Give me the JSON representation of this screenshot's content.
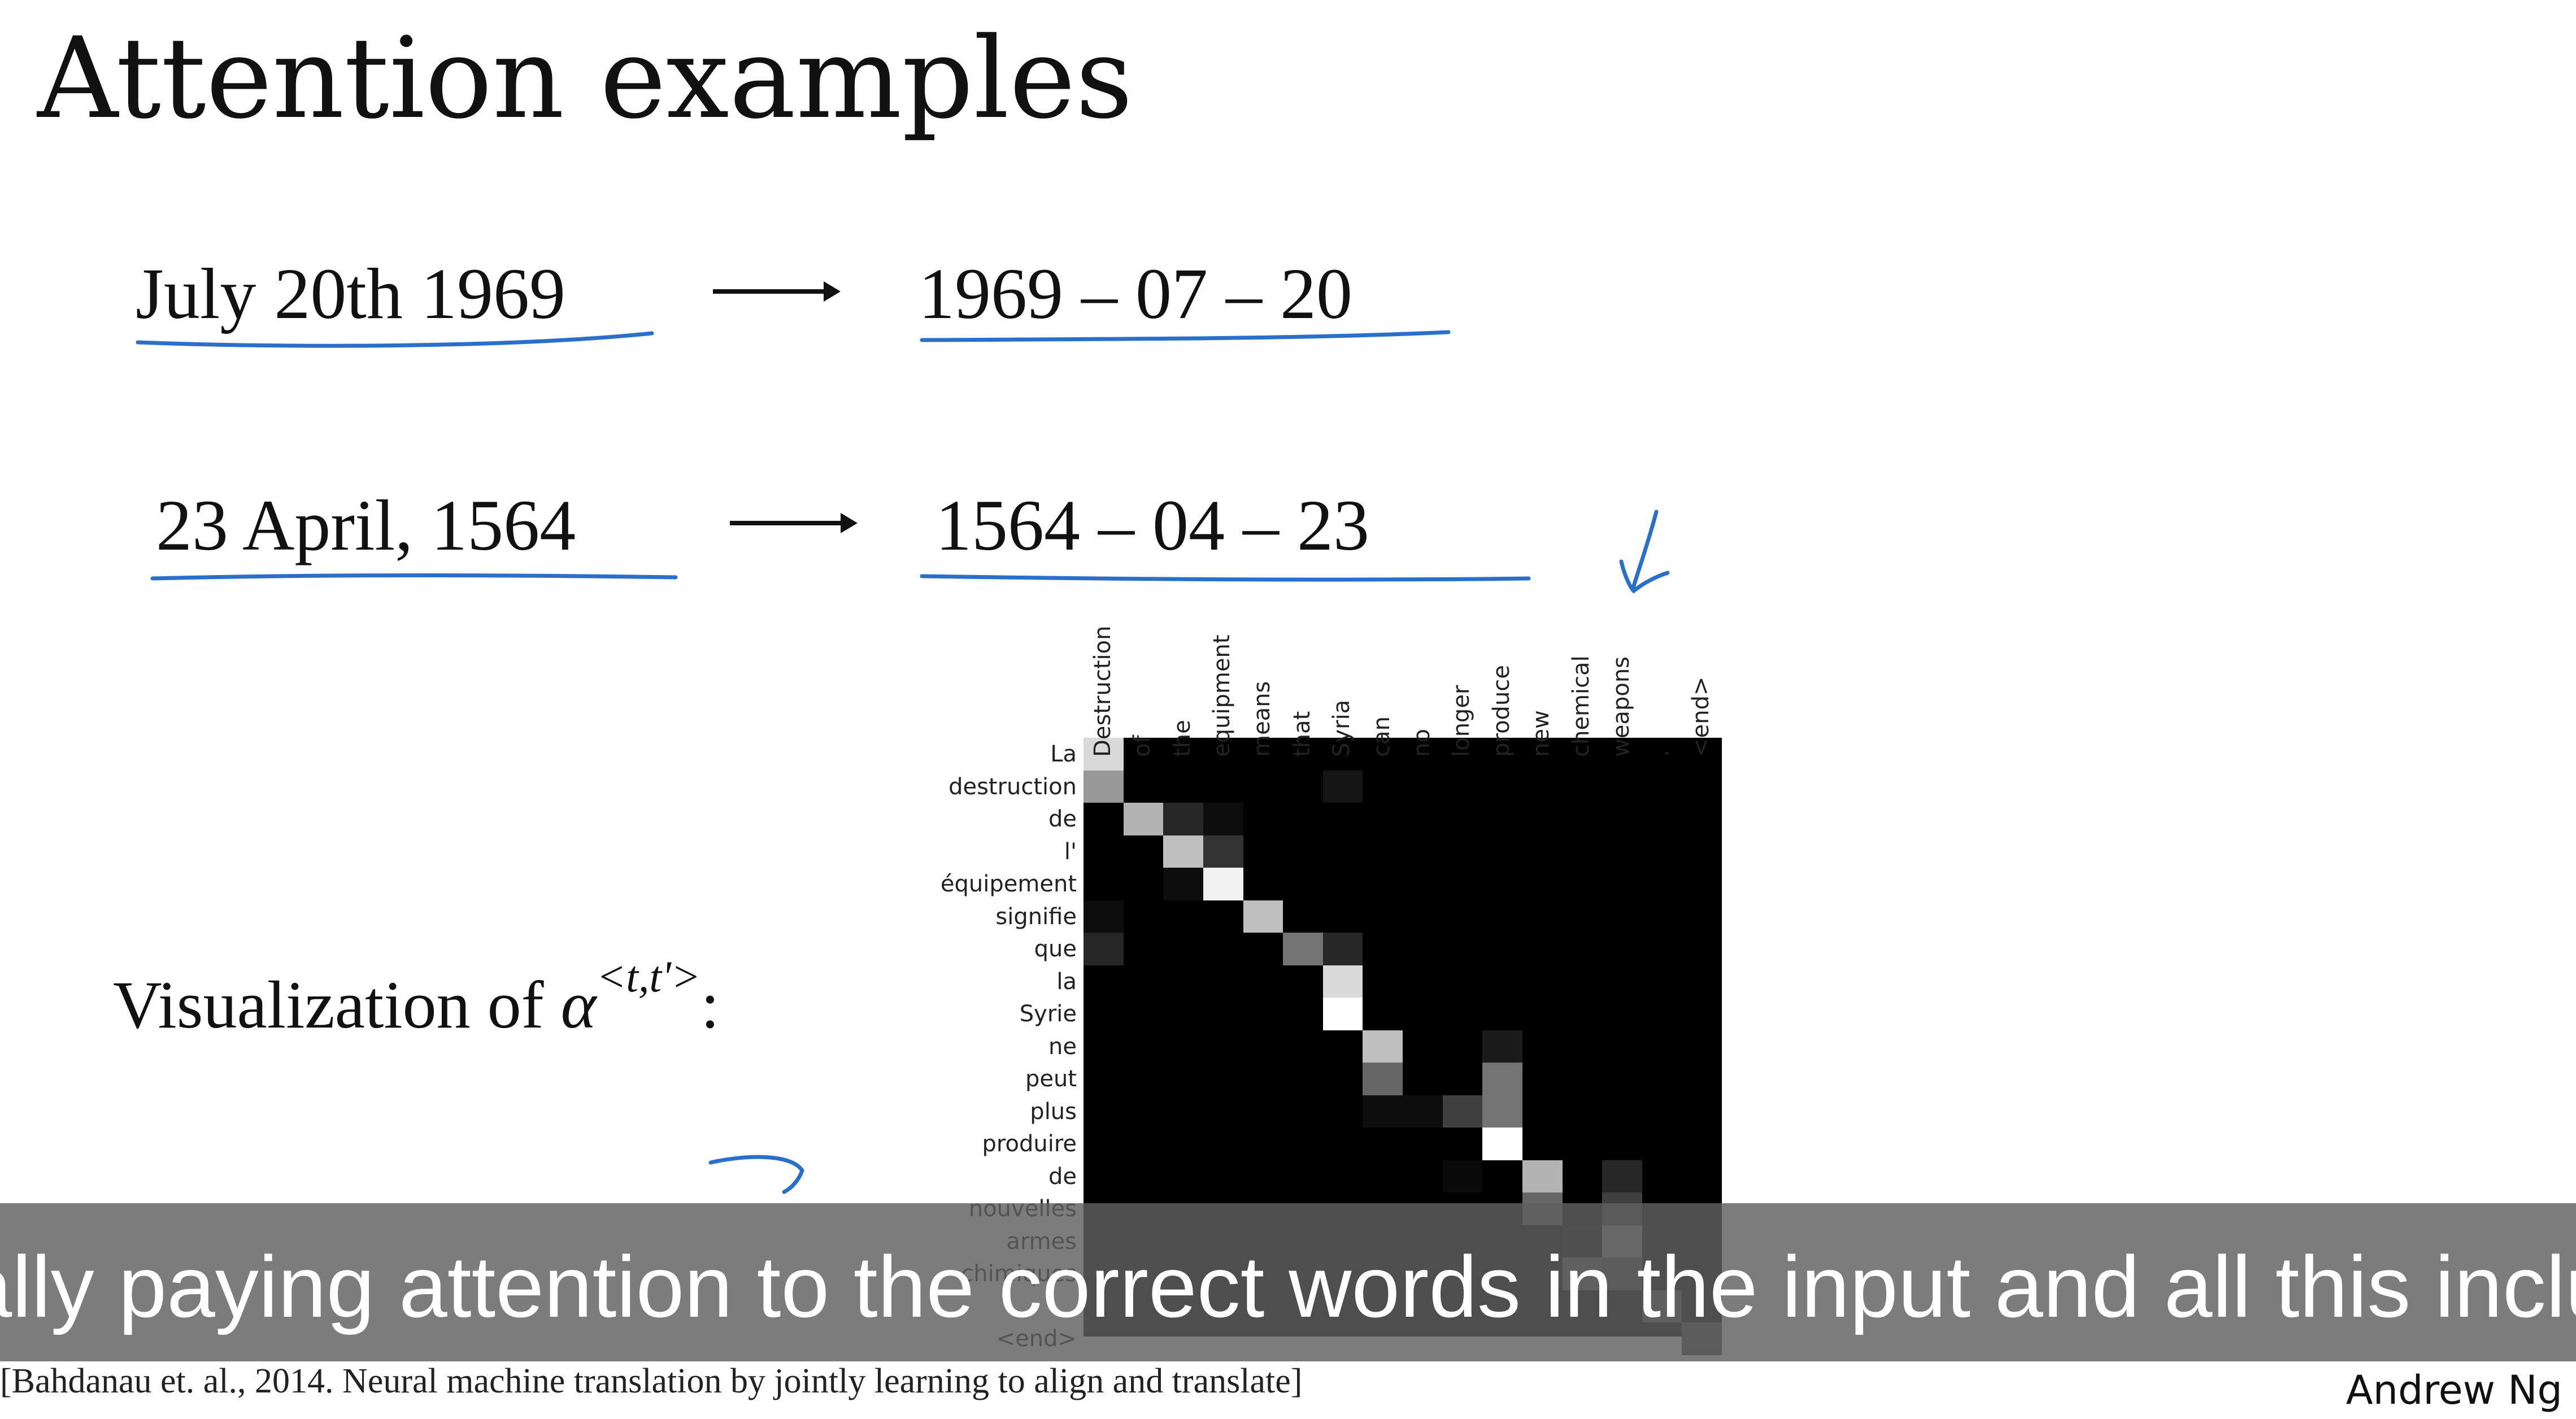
{
  "slide": {
    "title": "Attention examples",
    "examples": [
      {
        "input": "July 20th 1969",
        "output": "1969 – 07 – 20"
      },
      {
        "input": "23 April, 1564",
        "output": "1564 – 04 – 23"
      }
    ],
    "viz_label": "Visualization of ",
    "viz_alpha": "α",
    "viz_sup": "<t,t'>",
    "viz_colon": ":",
    "citation": "[Bahdanau et. al., 2014. Neural machine translation by jointly learning to align and translate]",
    "author": "Andrew Ng"
  },
  "subtitle": {
    "text": "ually paying attention to the correct words in the input and all this includi"
  },
  "heatmap": {
    "columns": [
      "Destruction",
      "of",
      "the",
      "equipment",
      "means",
      "that",
      "Syria",
      "can",
      "no",
      "longer",
      "produce",
      "new",
      "chemical",
      "weapons",
      ".",
      "<end>"
    ],
    "rows": [
      "La",
      "destruction",
      "de",
      "l'",
      "équipement",
      "signifie",
      "que",
      "la",
      "Syrie",
      "ne",
      "peut",
      "plus",
      "produire",
      "de",
      "nouvelles",
      "armes",
      "chimiques",
      ".",
      "<end>"
    ],
    "ink_color": "#2a6fc9",
    "cells": [
      [
        0,
        0,
        0.85
      ],
      [
        1,
        0,
        0.6
      ],
      [
        1,
        6,
        0.08
      ],
      [
        2,
        1,
        0.7
      ],
      [
        2,
        2,
        0.15
      ],
      [
        2,
        3,
        0.05
      ],
      [
        3,
        2,
        0.75
      ],
      [
        3,
        3,
        0.2
      ],
      [
        4,
        3,
        0.95
      ],
      [
        4,
        2,
        0.05
      ],
      [
        5,
        4,
        0.75
      ],
      [
        5,
        0,
        0.05
      ],
      [
        6,
        0,
        0.15
      ],
      [
        6,
        5,
        0.45
      ],
      [
        6,
        6,
        0.15
      ],
      [
        7,
        6,
        0.85
      ],
      [
        8,
        6,
        1.0
      ],
      [
        9,
        7,
        0.75
      ],
      [
        9,
        10,
        0.1
      ],
      [
        10,
        7,
        0.4
      ],
      [
        10,
        10,
        0.45
      ],
      [
        11,
        9,
        0.25
      ],
      [
        11,
        10,
        0.45
      ],
      [
        11,
        7,
        0.05
      ],
      [
        11,
        8,
        0.05
      ],
      [
        12,
        10,
        1.0
      ],
      [
        13,
        11,
        0.7
      ],
      [
        13,
        13,
        0.15
      ],
      [
        13,
        9,
        0.04
      ],
      [
        14,
        11,
        0.4
      ],
      [
        14,
        13,
        0.25
      ],
      [
        15,
        13,
        0.55
      ],
      [
        15,
        12,
        0.05
      ],
      [
        16,
        12,
        0.4
      ],
      [
        16,
        13,
        0.3
      ],
      [
        17,
        14,
        0.35
      ],
      [
        18,
        15,
        0.3
      ]
    ]
  }
}
